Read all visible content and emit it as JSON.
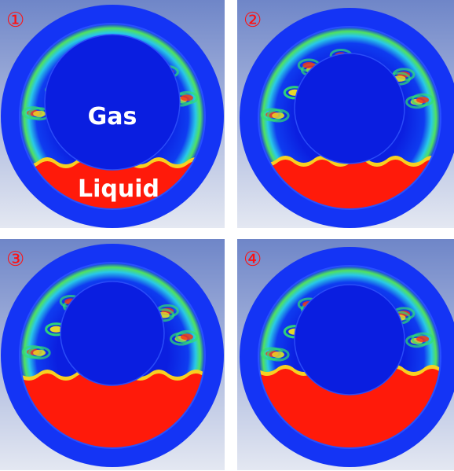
{
  "panels": [
    {
      "label": "①",
      "gas_label": "Gas",
      "liquid_label": "Liquid"
    },
    {
      "label": "②"
    },
    {
      "label": "③"
    },
    {
      "label": "④"
    }
  ]
}
